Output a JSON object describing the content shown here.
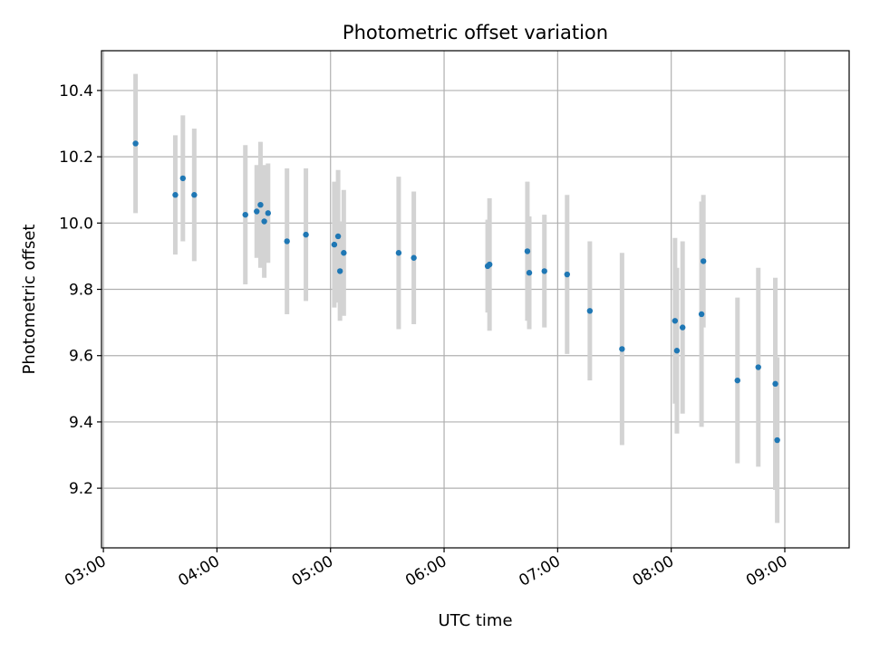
{
  "chart_data": {
    "type": "scatter",
    "title": "Photometric offset variation",
    "xlabel": "UTC time",
    "ylabel": "Photometric offset",
    "xlim": [
      "02:59",
      "09:34"
    ],
    "ylim": [
      9.02,
      10.52
    ],
    "grid": true,
    "x_tick_labels": [
      "03:00",
      "04:00",
      "05:00",
      "06:00",
      "07:00",
      "08:00",
      "09:00"
    ],
    "y_tick_labels": [
      "9.2",
      "9.4",
      "9.6",
      "9.8",
      "10.0",
      "10.2",
      "10.4"
    ],
    "colors": {
      "marker": "#1f77b4",
      "errorbar": "#d3d3d3",
      "grid": "#b0b0b0"
    },
    "series": [
      {
        "x": [
          "03:17",
          "03:38",
          "03:42",
          "03:48",
          "04:15",
          "04:21",
          "04:23",
          "04:25",
          "04:27",
          "04:37",
          "04:47",
          "05:02",
          "05:04",
          "05:05",
          "05:07",
          "05:36",
          "05:44",
          "06:23",
          "06:24",
          "06:44",
          "06:45",
          "06:53",
          "07:05",
          "07:17",
          "07:34",
          "08:02",
          "08:03",
          "08:06",
          "08:16",
          "08:17",
          "08:35",
          "08:46",
          "08:55",
          "08:56"
        ],
        "y": [
          10.24,
          10.085,
          10.135,
          10.085,
          10.025,
          10.035,
          10.055,
          10.005,
          10.03,
          9.945,
          9.965,
          9.935,
          9.96,
          9.855,
          9.91,
          9.91,
          9.895,
          9.87,
          9.875,
          9.915,
          9.85,
          9.855,
          9.845,
          9.735,
          9.62,
          9.705,
          9.615,
          9.685,
          9.725,
          9.885,
          9.525,
          9.565,
          9.515,
          9.345
        ],
        "yerr": [
          0.21,
          0.18,
          0.19,
          0.2,
          0.21,
          0.14,
          0.19,
          0.17,
          0.15,
          0.22,
          0.2,
          0.19,
          0.2,
          0.15,
          0.19,
          0.23,
          0.2,
          0.14,
          0.2,
          0.21,
          0.17,
          0.17,
          0.24,
          0.21,
          0.29,
          0.25,
          0.25,
          0.26,
          0.34,
          0.2,
          0.25,
          0.3,
          0.32,
          0.25
        ]
      }
    ]
  }
}
